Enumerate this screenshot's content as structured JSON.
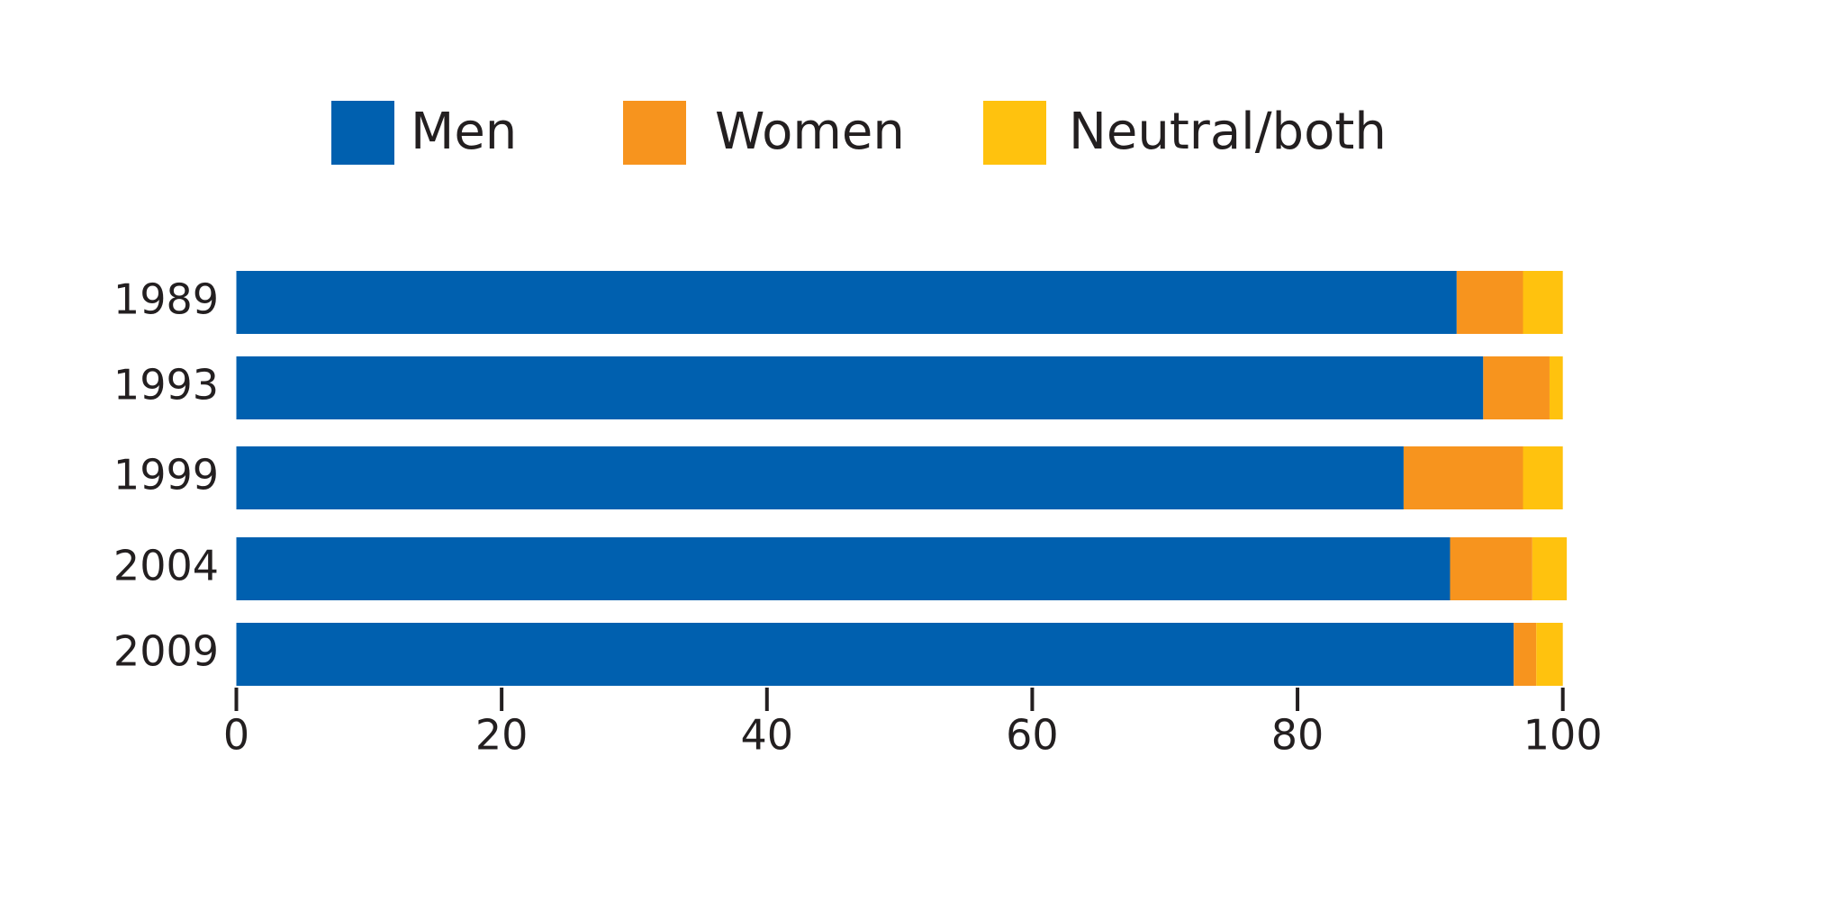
{
  "chart_data": {
    "type": "stacked-bar-horizontal",
    "categories": [
      "1989",
      "1993",
      "1999",
      "2004",
      "2009"
    ],
    "series": [
      {
        "name": "Men",
        "color": "#0060af",
        "values": [
          92,
          94,
          88,
          91.5,
          96.3
        ]
      },
      {
        "name": "Women",
        "color": "#f7941e",
        "values": [
          5,
          5,
          9,
          6.2,
          1.7
        ]
      },
      {
        "name": "Neutral/both",
        "color": "#ffc20e",
        "values": [
          3,
          1,
          3,
          2.6,
          2
        ]
      }
    ],
    "xlim": [
      0,
      100
    ],
    "xticks": [
      0,
      20,
      40,
      60,
      80,
      100
    ],
    "grid": false,
    "legend": "top"
  }
}
